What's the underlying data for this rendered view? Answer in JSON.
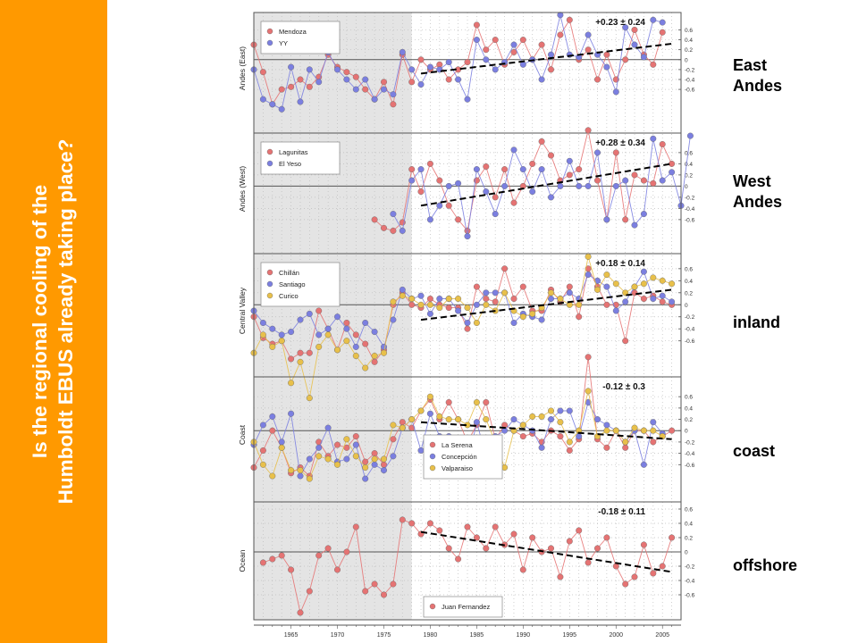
{
  "banner": {
    "line1": "Is the regional cooling of the",
    "line2": "Humboldt EBUS already taking place?",
    "background": "#ff9900",
    "text_color": "#ffffff"
  },
  "region_labels": {
    "east_andes": [
      "East",
      "Andes"
    ],
    "west_andes": [
      "West",
      "Andes"
    ],
    "inland": "inland",
    "coast": "coast",
    "offshore": "offshore"
  },
  "colors": {
    "red": "#e57373",
    "blue": "#7b7fe0",
    "yellow": "#e8c04a",
    "shade": "#e4e4e4"
  },
  "chart_data": {
    "type": "line",
    "xlim": [
      1961,
      2007
    ],
    "x_ticks": [
      1965,
      1970,
      1975,
      1980,
      1985,
      1990,
      1995,
      2000,
      2005
    ],
    "shaded_period": [
      1961,
      1978
    ],
    "grid": true,
    "y_tick_labels": [
      "0.6",
      "0.4",
      "0.2",
      "0",
      "-0.2",
      "-0.4",
      "-0.6"
    ],
    "panels": [
      {
        "ylabel": "Andes (East)",
        "ylim": [
          -1.3,
          0.95
        ],
        "y_ticks": [
          0.6,
          0.4,
          0.2,
          0,
          -0.2,
          -0.4,
          -0.6
        ],
        "legend": [
          "Mendoza",
          "YY"
        ],
        "trend_label": "+0.23 ± 0.24",
        "trend": {
          "x": [
            1979,
            2006
          ],
          "y": [
            -0.28,
            0.32
          ]
        },
        "series": [
          {
            "name": "Mendoza",
            "color": "red",
            "start": 1961,
            "values": [
              0.3,
              -0.25,
              -0.9,
              -0.6,
              -0.55,
              -0.4,
              -0.55,
              -0.35,
              0.1,
              -0.15,
              -0.25,
              -0.35,
              -0.6,
              -0.8,
              -0.45,
              -0.9,
              0.1,
              -0.45,
              0.0,
              -0.2,
              -0.1,
              -0.4,
              -0.2,
              -0.05,
              0.7,
              0.2,
              0.4,
              -0.1,
              0.15,
              0.4,
              0.0,
              0.3,
              -0.2,
              0.5,
              0.8,
              0.0,
              0.2,
              -0.4,
              0.1,
              -0.4,
              0.0,
              0.6,
              0.1,
              -0.1,
              0.55
            ]
          },
          {
            "name": "YY",
            "color": "blue",
            "start": 1961,
            "values": [
              -0.2,
              -0.8,
              -0.9,
              -1.0,
              -0.15,
              -0.85,
              -0.2,
              -0.45,
              0.15,
              -0.2,
              -0.4,
              -0.6,
              -0.4,
              -0.8,
              -0.6,
              -0.7,
              0.15,
              -0.2,
              -0.5,
              -0.15,
              -0.2,
              -0.05,
              -0.4,
              -0.8,
              0.4,
              0.0,
              -0.2,
              -0.05,
              0.3,
              -0.1,
              0.0,
              -0.4,
              0.1,
              0.9,
              0.1,
              0.05,
              0.5,
              0.1,
              -0.15,
              -0.65,
              0.65,
              0.3,
              0.05,
              0.8,
              0.75
            ]
          }
        ]
      },
      {
        "ylabel": "Andes (West)",
        "ylim": [
          -1.05,
          0.95
        ],
        "y_ticks": [
          0.6,
          0.4,
          0.2,
          0,
          -0.2,
          -0.4,
          -0.6
        ],
        "legend": [
          "Lagunitas",
          "El Yeso"
        ],
        "trend_label": "+0.28 ± 0.34",
        "trend": {
          "x": [
            1979,
            2006
          ],
          "y": [
            -0.35,
            0.4
          ]
        },
        "series": [
          {
            "name": "Lagunitas",
            "color": "red",
            "start": 1974,
            "values": [
              -0.6,
              -0.75,
              -0.8,
              -0.65,
              0.3,
              -0.1,
              0.4,
              0.1,
              -0.35,
              -0.6,
              -0.8,
              0.1,
              0.35,
              -0.2,
              0.3,
              -0.3,
              0.0,
              0.4,
              0.8,
              0.55,
              0.1,
              0.2,
              0.3,
              1.0,
              0.1,
              -0.6,
              0.6,
              -0.6,
              0.2,
              0.1,
              0.05,
              0.75,
              0.4
            ]
          },
          {
            "name": "El Yeso",
            "color": "blue",
            "start": 1976,
            "values": [
              -0.5,
              -0.8,
              0.1,
              0.3,
              -0.6,
              -0.35,
              0.0,
              0.05,
              -0.9,
              0.3,
              -0.1,
              -0.5,
              0.0,
              0.65,
              0.3,
              -0.1,
              0.3,
              -0.2,
              0.0,
              0.45,
              0.0,
              0.0,
              0.6,
              -0.6,
              0.0,
              0.1,
              -0.7,
              -0.5,
              0.85,
              0.1,
              0.25,
              -0.35,
              0.9
            ]
          }
        ]
      },
      {
        "ylabel": "Central Valley",
        "ylim": [
          -1.05,
          0.85
        ],
        "y_ticks": [
          0.6,
          0.4,
          0.2,
          0,
          -0.2,
          -0.4,
          -0.6
        ],
        "legend": [
          "Chillán",
          "Santiago",
          "Curico"
        ],
        "trend_label": "+0.18 ± 0.14",
        "trend": {
          "x": [
            1979,
            2006
          ],
          "y": [
            -0.25,
            0.25
          ]
        },
        "series": [
          {
            "name": "Chillán",
            "color": "red",
            "start": 1961,
            "values": [
              -0.2,
              -0.55,
              -0.65,
              -0.6,
              -0.9,
              -0.8,
              -0.8,
              -0.1,
              -0.4,
              -0.75,
              -0.3,
              -0.5,
              -0.65,
              -0.95,
              -0.75,
              0.0,
              0.2,
              0.0,
              -0.05,
              0.1,
              0.0,
              -0.05,
              -0.05,
              -0.4,
              0.3,
              0.1,
              0.05,
              0.6,
              0.1,
              0.3,
              -0.1,
              -0.1,
              0.25,
              0.05,
              0.3,
              -0.2,
              0.6,
              0.3,
              0.0,
              0.0,
              -0.6,
              0.2,
              0.1,
              0.15,
              0.05,
              0.0
            ]
          },
          {
            "name": "Santiago",
            "color": "blue",
            "start": 1961,
            "values": [
              -0.1,
              -0.3,
              -0.4,
              -0.5,
              -0.45,
              -0.25,
              -0.15,
              -0.5,
              -0.4,
              -0.2,
              -0.4,
              -0.7,
              -0.3,
              -0.45,
              -0.7,
              -0.25,
              0.25,
              0.1,
              0.15,
              -0.15,
              0.1,
              0.1,
              -0.1,
              -0.3,
              0.0,
              0.2,
              0.2,
              0.2,
              -0.3,
              -0.15,
              -0.2,
              -0.25,
              0.1,
              0.1,
              0.2,
              0.1,
              0.5,
              0.4,
              0.3,
              -0.1,
              0.05,
              0.3,
              0.55,
              0.1,
              0.15,
              0.05
            ]
          },
          {
            "name": "Curico",
            "color": "yellow",
            "start": 1961,
            "values": [
              -0.8,
              -0.5,
              -0.7,
              -0.6,
              -1.3,
              -0.95,
              -1.55,
              -0.7,
              -0.5,
              -0.75,
              -0.6,
              -0.85,
              -1.05,
              -0.85,
              -0.8,
              0.05,
              0.15,
              0.1,
              0.0,
              0.0,
              -0.05,
              0.1,
              0.1,
              -0.05,
              -0.3,
              0.0,
              -0.1,
              0.2,
              -0.1,
              -0.2,
              -0.15,
              -0.05,
              0.2,
              0.1,
              0.0,
              0.0,
              0.8,
              0.25,
              0.5,
              0.35,
              0.2,
              0.3,
              0.35,
              0.45,
              0.4,
              0.35
            ]
          }
        ]
      },
      {
        "ylabel": "Coast",
        "ylim": [
          -1.1,
          0.95
        ],
        "y_ticks": [
          0.6,
          0.4,
          0.2,
          0,
          -0.2,
          -0.4,
          -0.6
        ],
        "legend": [
          "La Serena",
          "Concepción",
          "Valparaiso"
        ],
        "trend_label": "-0.12 ± 0.3",
        "trend": {
          "x": [
            1979,
            2006
          ],
          "y": [
            0.15,
            -0.15
          ]
        },
        "series": [
          {
            "name": "La Serena",
            "color": "red",
            "start": 1961,
            "values": [
              -0.65,
              -0.35,
              0.0,
              -0.3,
              -0.75,
              -0.65,
              -0.8,
              -0.2,
              -0.45,
              -0.25,
              -0.3,
              -0.1,
              -0.55,
              -0.4,
              -0.6,
              -0.15,
              0.15,
              0.05,
              0.35,
              0.55,
              0.2,
              0.5,
              0.2,
              -0.2,
              0.1,
              0.5,
              -0.15,
              0.1,
              0.0,
              -0.1,
              -0.05,
              -0.2,
              0.0,
              -0.1,
              -0.35,
              -0.15,
              1.3,
              -0.15,
              -0.3,
              0.0,
              -0.3,
              0.0,
              0.0,
              -0.2,
              -0.1,
              0.0
            ]
          },
          {
            "name": "Concepción",
            "color": "blue",
            "start": 1961,
            "values": [
              -0.25,
              0.1,
              0.25,
              -0.2,
              0.3,
              -0.8,
              -0.5,
              -0.3,
              0.05,
              -0.55,
              -0.5,
              -0.25,
              -0.85,
              -0.6,
              -0.7,
              -0.45,
              0.05,
              0.2,
              -0.35,
              0.3,
              -0.1,
              -0.1,
              -0.3,
              -0.6,
              0.15,
              -0.45,
              -0.1,
              0.0,
              0.2,
              0.1,
              0.0,
              -0.3,
              0.2,
              0.35,
              0.35,
              -0.1,
              0.5,
              0.2,
              0.1,
              0.0,
              -0.2,
              0.0,
              -0.6,
              0.15,
              -0.05
            ]
          },
          {
            "name": "Valparaiso",
            "color": "yellow",
            "start": 1961,
            "values": [
              -0.2,
              -0.6,
              -0.8,
              -0.3,
              -0.7,
              -0.7,
              -0.85,
              -0.45,
              -0.5,
              -0.6,
              -0.15,
              -0.45,
              -0.65,
              -0.5,
              -0.5,
              0.1,
              0.05,
              0.2,
              0.35,
              0.6,
              0.25,
              0.2,
              0.2,
              0.1,
              0.5,
              0.2,
              -0.2,
              -0.65,
              0.0,
              0.1,
              0.25,
              0.25,
              0.35,
              0.15,
              -0.2,
              0.0,
              0.7,
              -0.1,
              0.0,
              0.0,
              -0.2,
              0.05,
              0.0,
              0.0,
              -0.1
            ]
          }
        ]
      },
      {
        "ylabel": "Ocean",
        "ylim": [
          -0.95,
          0.7
        ],
        "y_ticks": [
          0.6,
          0.4,
          0.2,
          0,
          -0.2,
          -0.4,
          -0.6
        ],
        "legend": [
          "Juan Fernandez"
        ],
        "trend_label": "-0.18 ± 0.11",
        "trend": {
          "x": [
            1979,
            2006
          ],
          "y": [
            0.28,
            -0.28
          ]
        },
        "series": [
          {
            "name": "Juan Fernandez",
            "color": "red",
            "start": 1962,
            "values": [
              -0.15,
              -0.1,
              -0.05,
              -0.25,
              -0.85,
              -0.55,
              -0.05,
              0.05,
              -0.25,
              0.0,
              0.35,
              -0.55,
              -0.45,
              -0.6,
              -0.45,
              0.45,
              0.4,
              0.25,
              0.4,
              0.3,
              0.05,
              -0.1,
              0.35,
              0.2,
              0.05,
              0.35,
              0.1,
              0.25,
              -0.25,
              0.2,
              0.0,
              0.05,
              -0.35,
              0.15,
              0.3,
              -0.15,
              0.05,
              0.2,
              -0.2,
              -0.45,
              -0.35,
              0.1,
              -0.3,
              -0.2,
              0.2
            ]
          }
        ]
      }
    ]
  }
}
